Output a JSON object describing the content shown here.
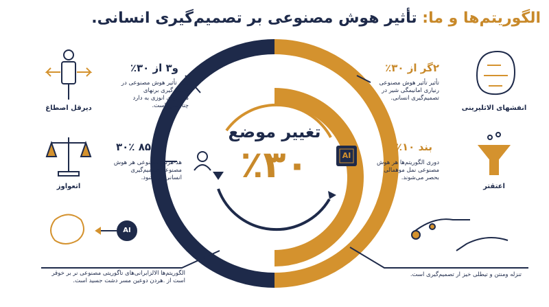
{
  "title": {
    "highlight": "الگوریتم‌ها و ما:",
    "rest": "تأثیر هوش مصنوعی بر تصمیم‌گیری انسانی."
  },
  "center": {
    "heading": "تغییر موضع",
    "value": "٪۳۰",
    "chip": "AI"
  },
  "panels": [
    {
      "heading": "و۳ از ۳۰٪",
      "body": "تأثیر تأثیر هوش مصنوعی در تصمیم‌گیری برنهای مباستهای انوزی به دارد چتاربیس است.",
      "label": "دیرقل اصطاغ"
    },
    {
      "heading": "۸۵ ۳۰٪",
      "body": "هد-هرش مصنوعی هر هوش مصنوعی تصمیم‌گیری انسانی می شود.",
      "label": "اتعواوز"
    },
    {
      "body": "الگوریتم‌ها الالزابرانی‌های تاگوریتی مصنوعی نر بر خوقر است از .هردن دوعین مسر دشت جسید است.",
      "chip": "AI"
    },
    {
      "heading": "۲گر از ۳۰٪",
      "body": "تأثیر تأثیر هوش مصنوعی رنیاری امانیمگی شیر در تصمیم‌گیری انسانی.",
      "label": "انفشهای الاثلیرینی"
    },
    {
      "heading": "بند ۱۰٪",
      "body": "دوری الگوریتم‌ها هر هوش مصنوعی نمل موهمالی بحصر می‌شوند.",
      "label": "اعتقتر"
    },
    {
      "body": "تنزله ومنتن و تیطلی خیز ار تصمیم‌گیری است."
    }
  ]
}
